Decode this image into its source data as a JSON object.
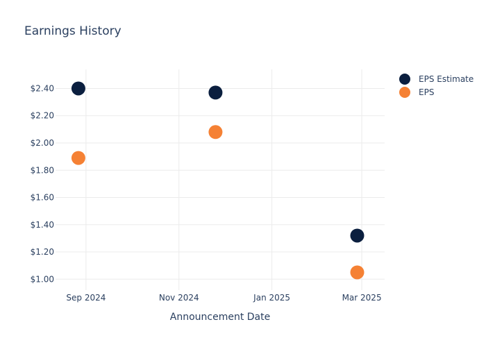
{
  "chart_data": {
    "type": "scatter",
    "title": "Earnings History",
    "xlabel": "Announcement Date",
    "ylabel": "",
    "x_ticks": [
      {
        "date": "2024-09-01",
        "label": "Sep 2024"
      },
      {
        "date": "2024-11-01",
        "label": "Nov 2024"
      },
      {
        "date": "2025-01-01",
        "label": "Jan 2025"
      },
      {
        "date": "2025-03-01",
        "label": "Mar 2025"
      }
    ],
    "xlim": [
      "2024-08-12",
      "2025-03-16"
    ],
    "y_ticks": [
      {
        "value": 1.0,
        "label": "$1.00"
      },
      {
        "value": 1.2,
        "label": "$1.20"
      },
      {
        "value": 1.4,
        "label": "$1.40"
      },
      {
        "value": 1.6,
        "label": "$1.60"
      },
      {
        "value": 1.8,
        "label": "$1.80"
      },
      {
        "value": 2.0,
        "label": "$2.00"
      },
      {
        "value": 2.2,
        "label": "$2.20"
      },
      {
        "value": 2.4,
        "label": "$2.40"
      }
    ],
    "ylim": [
      0.92,
      2.54
    ],
    "grid": true,
    "legend_position": "top-right",
    "series": [
      {
        "name": "EPS Estimate",
        "color": "#0b1f3f",
        "points": [
          {
            "x": "2024-08-27",
            "y": 2.4
          },
          {
            "x": "2024-11-25",
            "y": 2.37
          },
          {
            "x": "2025-02-26",
            "y": 1.32
          }
        ]
      },
      {
        "name": "EPS",
        "color": "#f58134",
        "points": [
          {
            "x": "2024-08-27",
            "y": 1.89
          },
          {
            "x": "2024-11-25",
            "y": 2.08
          },
          {
            "x": "2025-02-26",
            "y": 1.05
          }
        ]
      }
    ]
  }
}
